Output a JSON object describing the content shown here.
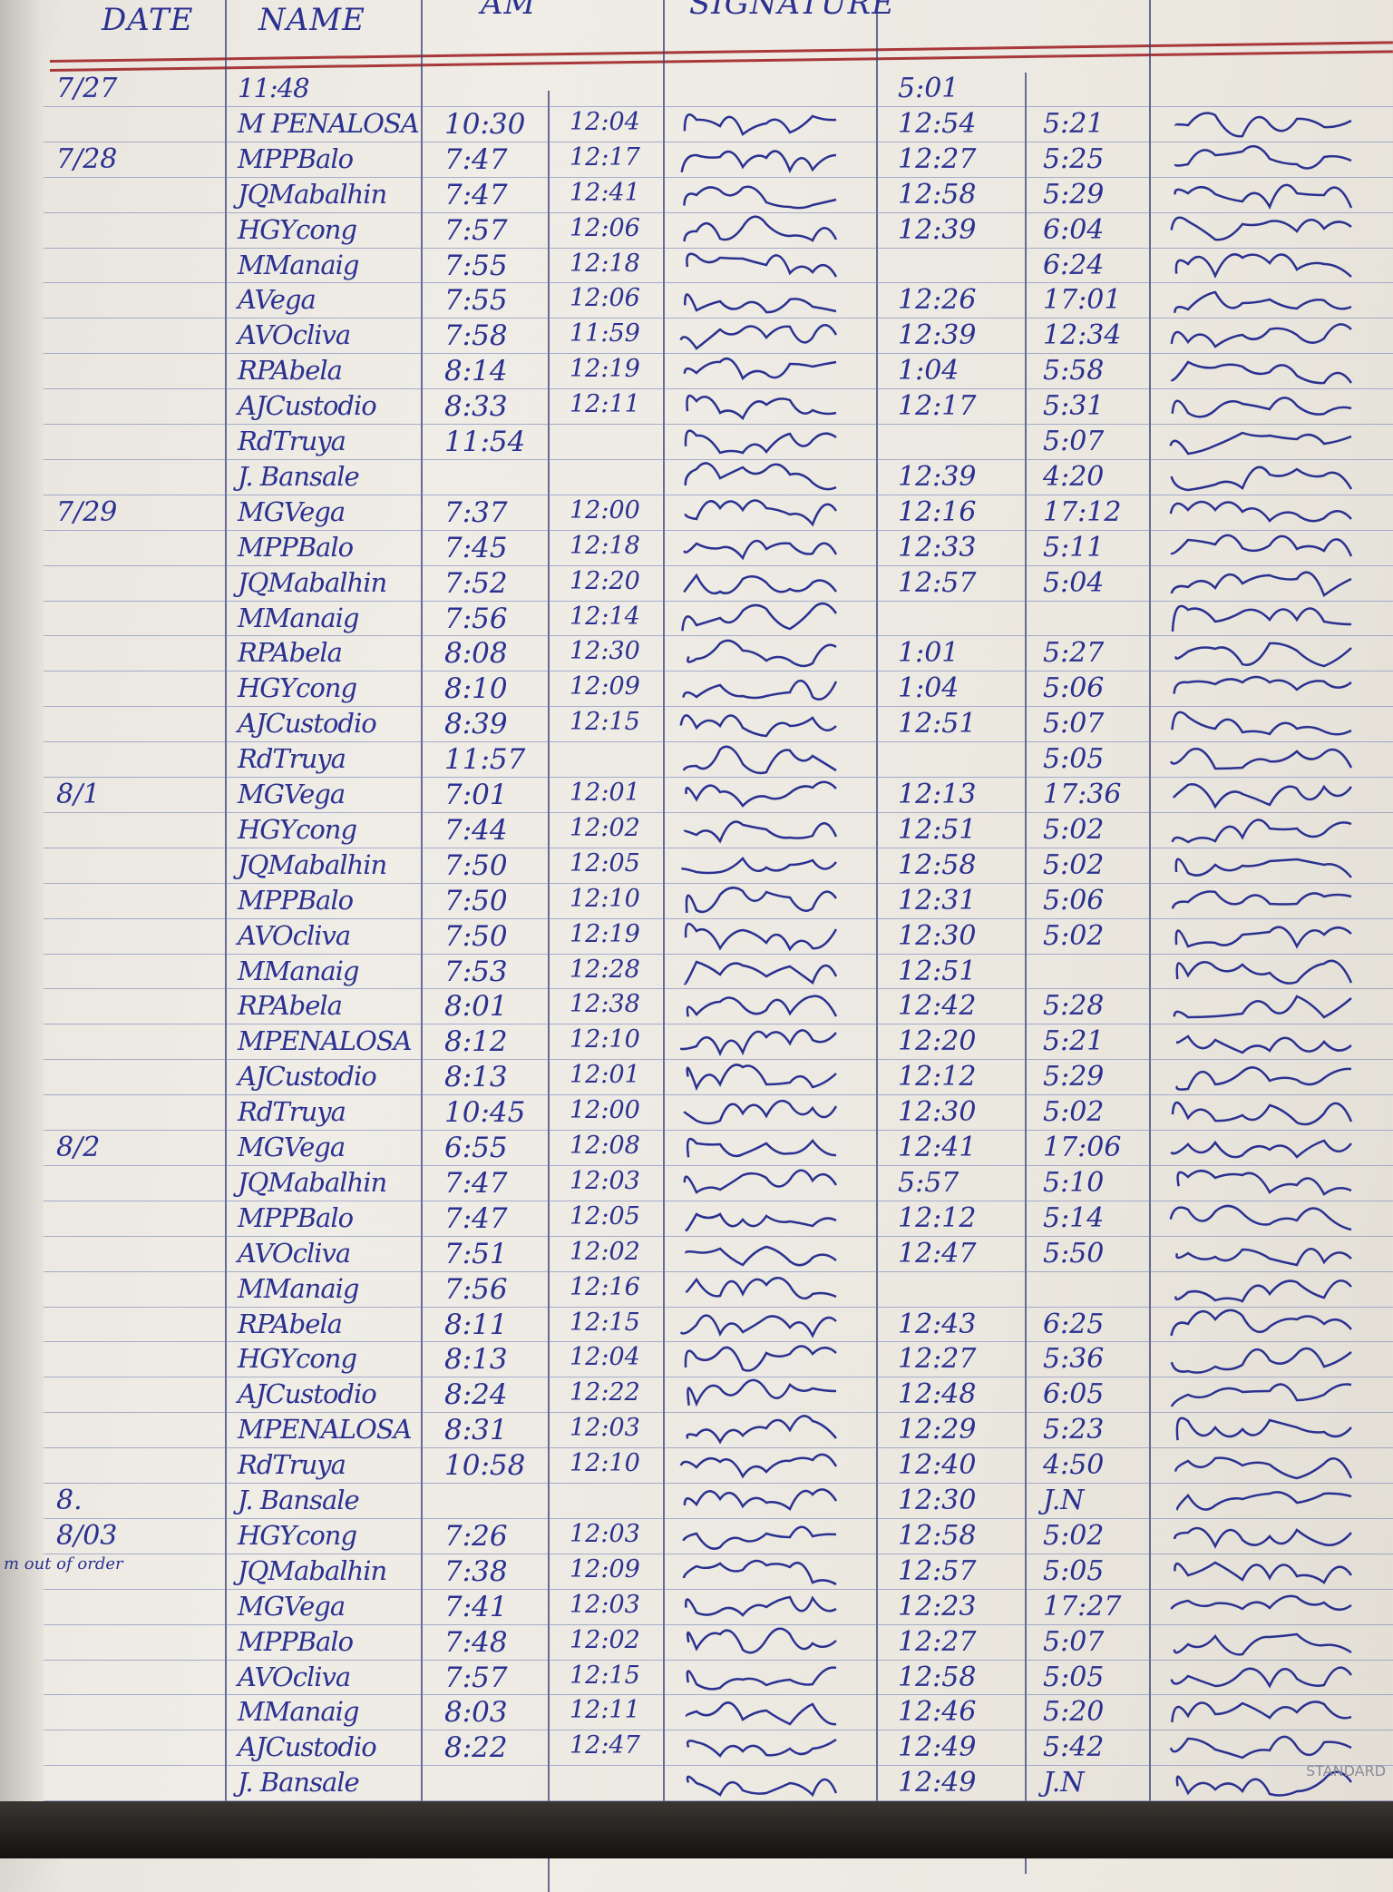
{
  "header": {
    "date": "DATE",
    "name": "NAME",
    "am": "AM",
    "signature": "SIGNATURE"
  },
  "colors": {
    "ink": "#2b3190",
    "paper": "#efede6",
    "rule_red": "#a8383a",
    "rule_blue": "#6b78b8"
  },
  "rows": [
    {
      "date": "7/27",
      "name": "11:48",
      "am_in": "",
      "am_out": "",
      "pm_in": "5:01",
      "pm_out": ""
    },
    {
      "date": "",
      "name": "M PENALOSA",
      "am_in": "10:30",
      "am_out": "12:04",
      "pm_in": "12:54",
      "pm_out": "5:21"
    },
    {
      "date": "7/28",
      "name": "MPPBalo",
      "am_in": "7:47",
      "am_out": "12:17",
      "pm_in": "12:27",
      "pm_out": "5:25"
    },
    {
      "date": "",
      "name": "JQMabalhin",
      "am_in": "7:47",
      "am_out": "12:41",
      "pm_in": "12:58",
      "pm_out": "5:29"
    },
    {
      "date": "",
      "name": "HGYcong",
      "am_in": "7:57",
      "am_out": "12:06",
      "pm_in": "12:39",
      "pm_out": "6:04"
    },
    {
      "date": "",
      "name": "MManaig",
      "am_in": "7:55",
      "am_out": "12:18",
      "pm_in": "",
      "pm_out": "6:24"
    },
    {
      "date": "",
      "name": "AVega",
      "am_in": "7:55",
      "am_out": "12:06",
      "pm_in": "12:26",
      "pm_out": "17:01"
    },
    {
      "date": "",
      "name": "AVOcliva",
      "am_in": "7:58",
      "am_out": "11:59",
      "pm_in": "12:39",
      "pm_out": "12:34"
    },
    {
      "date": "",
      "name": "RPAbela",
      "am_in": "8:14",
      "am_out": "12:19",
      "pm_in": "1:04",
      "pm_out": "5:58"
    },
    {
      "date": "",
      "name": "AJCustodio",
      "am_in": "8:33",
      "am_out": "12:11",
      "pm_in": "12:17",
      "pm_out": "5:31"
    },
    {
      "date": "",
      "name": "RdTruya",
      "am_in": "11:54",
      "am_out": "",
      "pm_in": "",
      "pm_out": "5:07"
    },
    {
      "date": "",
      "name": "J. Bansale",
      "am_in": "",
      "am_out": "",
      "pm_in": "12:39",
      "pm_out": "4:20"
    },
    {
      "date": "7/29",
      "name": "MGVega",
      "am_in": "7:37",
      "am_out": "12:00",
      "pm_in": "12:16",
      "pm_out": "17:12"
    },
    {
      "date": "",
      "name": "MPPBalo",
      "am_in": "7:45",
      "am_out": "12:18",
      "pm_in": "12:33",
      "pm_out": "5:11"
    },
    {
      "date": "",
      "name": "JQMabalhin",
      "am_in": "7:52",
      "am_out": "12:20",
      "pm_in": "12:57",
      "pm_out": "5:04"
    },
    {
      "date": "",
      "name": "MManaig",
      "am_in": "7:56",
      "am_out": "12:14",
      "pm_in": "",
      "pm_out": ""
    },
    {
      "date": "",
      "name": "RPAbela",
      "am_in": "8:08",
      "am_out": "12:30",
      "pm_in": "1:01",
      "pm_out": "5:27"
    },
    {
      "date": "",
      "name": "HGYcong",
      "am_in": "8:10",
      "am_out": "12:09",
      "pm_in": "1:04",
      "pm_out": "5:06"
    },
    {
      "date": "",
      "name": "AJCustodio",
      "am_in": "8:39",
      "am_out": "12:15",
      "pm_in": "12:51",
      "pm_out": "5:07"
    },
    {
      "date": "",
      "name": "RdTruya",
      "am_in": "11:57",
      "am_out": "",
      "pm_in": "",
      "pm_out": "5:05"
    },
    {
      "date": "8/1",
      "name": "MGVega",
      "am_in": "7:01",
      "am_out": "12:01",
      "pm_in": "12:13",
      "pm_out": "17:36"
    },
    {
      "date": "",
      "name": "HGYcong",
      "am_in": "7:44",
      "am_out": "12:02",
      "pm_in": "12:51",
      "pm_out": "5:02"
    },
    {
      "date": "",
      "name": "JQMabalhin",
      "am_in": "7:50",
      "am_out": "12:05",
      "pm_in": "12:58",
      "pm_out": "5:02"
    },
    {
      "date": "",
      "name": "MPPBalo",
      "am_in": "7:50",
      "am_out": "12:10",
      "pm_in": "12:31",
      "pm_out": "5:06"
    },
    {
      "date": "",
      "name": "AVOcliva",
      "am_in": "7:50",
      "am_out": "12:19",
      "pm_in": "12:30",
      "pm_out": "5:02"
    },
    {
      "date": "",
      "name": "MManaig",
      "am_in": "7:53",
      "am_out": "12:28",
      "pm_in": "12:51",
      "pm_out": ""
    },
    {
      "date": "",
      "name": "RPAbela",
      "am_in": "8:01",
      "am_out": "12:38",
      "pm_in": "12:42",
      "pm_out": "5:28"
    },
    {
      "date": "",
      "name": "MPENALOSA",
      "am_in": "8:12",
      "am_out": "12:10",
      "pm_in": "12:20",
      "pm_out": "5:21"
    },
    {
      "date": "",
      "name": "AJCustodio",
      "am_in": "8:13",
      "am_out": "12:01",
      "pm_in": "12:12",
      "pm_out": "5:29"
    },
    {
      "date": "",
      "name": "RdTruya",
      "am_in": "10:45",
      "am_out": "12:00",
      "pm_in": "12:30",
      "pm_out": "5:02"
    },
    {
      "date": "8/2",
      "name": "MGVega",
      "am_in": "6:55",
      "am_out": "12:08",
      "pm_in": "12:41",
      "pm_out": "17:06"
    },
    {
      "date": "",
      "name": "JQMabalhin",
      "am_in": "7:47",
      "am_out": "12:03",
      "pm_in": "5:57",
      "pm_out": "5:10"
    },
    {
      "date": "",
      "name": "MPPBalo",
      "am_in": "7:47",
      "am_out": "12:05",
      "pm_in": "12:12",
      "pm_out": "5:14"
    },
    {
      "date": "",
      "name": "AVOcliva",
      "am_in": "7:51",
      "am_out": "12:02",
      "pm_in": "12:47",
      "pm_out": "5:50"
    },
    {
      "date": "",
      "name": "MManaig",
      "am_in": "7:56",
      "am_out": "12:16",
      "pm_in": "",
      "pm_out": ""
    },
    {
      "date": "",
      "name": "RPAbela",
      "am_in": "8:11",
      "am_out": "12:15",
      "pm_in": "12:43",
      "pm_out": "6:25"
    },
    {
      "date": "",
      "name": "HGYcong",
      "am_in": "8:13",
      "am_out": "12:04",
      "pm_in": "12:27",
      "pm_out": "5:36"
    },
    {
      "date": "",
      "name": "AJCustodio",
      "am_in": "8:24",
      "am_out": "12:22",
      "pm_in": "12:48",
      "pm_out": "6:05"
    },
    {
      "date": "",
      "name": "MPENALOSA",
      "am_in": "8:31",
      "am_out": "12:03",
      "pm_in": "12:29",
      "pm_out": "5:23"
    },
    {
      "date": "",
      "name": "RdTruya",
      "am_in": "10:58",
      "am_out": "12:10",
      "pm_in": "12:40",
      "pm_out": "4:50"
    },
    {
      "date": "8.",
      "name": "J. Bansale",
      "am_in": "",
      "am_out": "",
      "pm_in": "12:30",
      "pm_out": "J.N"
    },
    {
      "date": "8/03",
      "note": "m out of order",
      "name": "HGYcong",
      "am_in": "7:26",
      "am_out": "12:03",
      "pm_in": "12:58",
      "pm_out": "5:02"
    },
    {
      "date": "",
      "name": "JQMabalhin",
      "am_in": "7:38",
      "am_out": "12:09",
      "pm_in": "12:57",
      "pm_out": "5:05"
    },
    {
      "date": "",
      "name": "MGVega",
      "am_in": "7:41",
      "am_out": "12:03",
      "pm_in": "12:23",
      "pm_out": "17:27"
    },
    {
      "date": "",
      "name": "MPPBalo",
      "am_in": "7:48",
      "am_out": "12:02",
      "pm_in": "12:27",
      "pm_out": "5:07"
    },
    {
      "date": "",
      "name": "AVOcliva",
      "am_in": "7:57",
      "am_out": "12:15",
      "pm_in": "12:58",
      "pm_out": "5:05"
    },
    {
      "date": "",
      "name": "MManaig",
      "am_in": "8:03",
      "am_out": "12:11",
      "pm_in": "12:46",
      "pm_out": "5:20"
    },
    {
      "date": "",
      "name": "AJCustodio",
      "am_in": "8:22",
      "am_out": "12:47",
      "pm_in": "12:49",
      "pm_out": "5:42"
    },
    {
      "date": "",
      "name": "J. Bansale",
      "am_in": "",
      "am_out": "",
      "pm_in": "12:49",
      "pm_out": "J.N"
    }
  ],
  "brand": "STANDARD"
}
